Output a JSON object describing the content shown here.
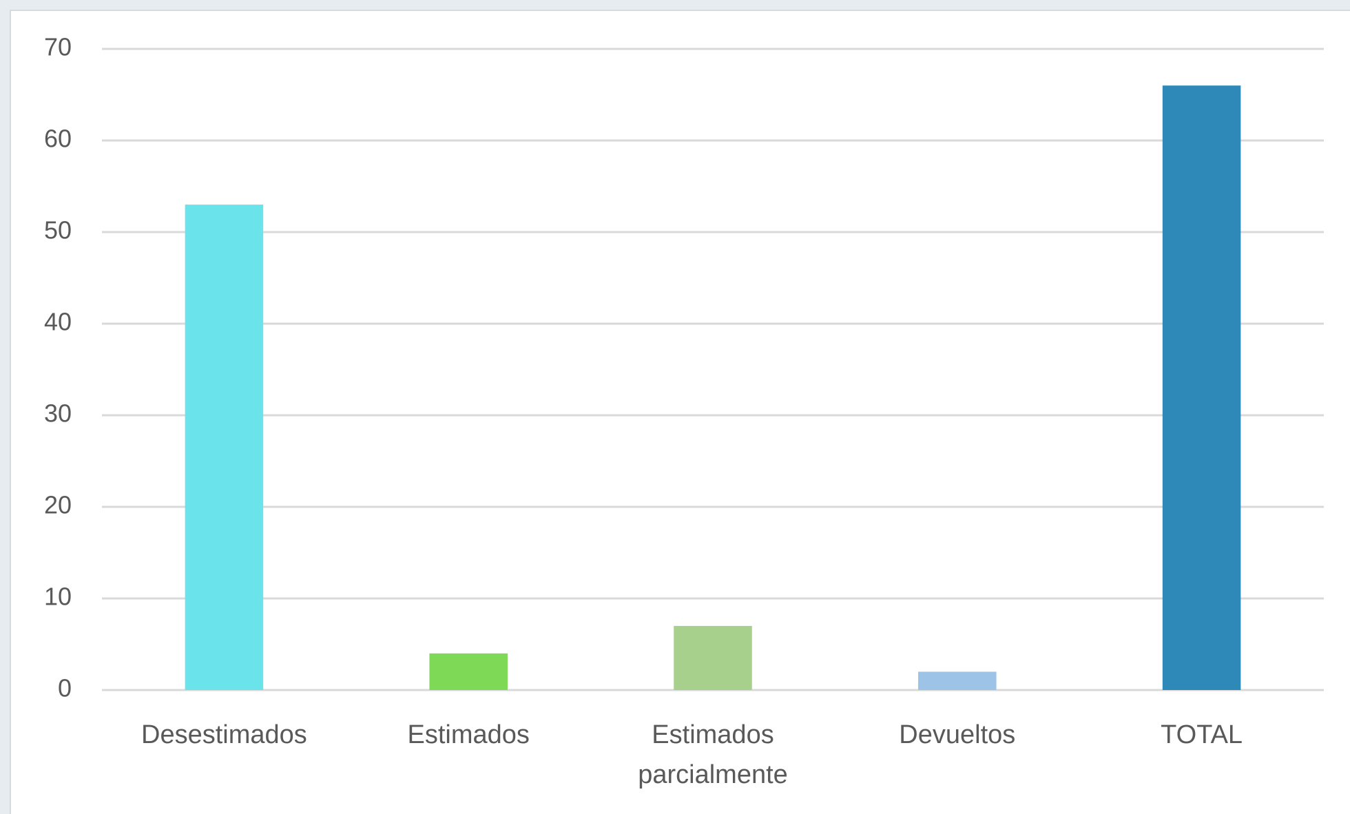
{
  "chart_data": {
    "type": "bar",
    "categories": [
      "Desestimados",
      "Estimados",
      "Estimados parcialmente",
      "Devueltos",
      "TOTAL"
    ],
    "values": [
      53,
      4,
      7,
      2,
      66
    ],
    "colors": [
      "#6ae4ea",
      "#7ed957",
      "#a8d08d",
      "#9dc3e6",
      "#2e89b8"
    ],
    "ylim": [
      0,
      70
    ],
    "yticks": [
      0,
      10,
      20,
      30,
      40,
      50,
      60,
      70
    ],
    "grid": true
  }
}
